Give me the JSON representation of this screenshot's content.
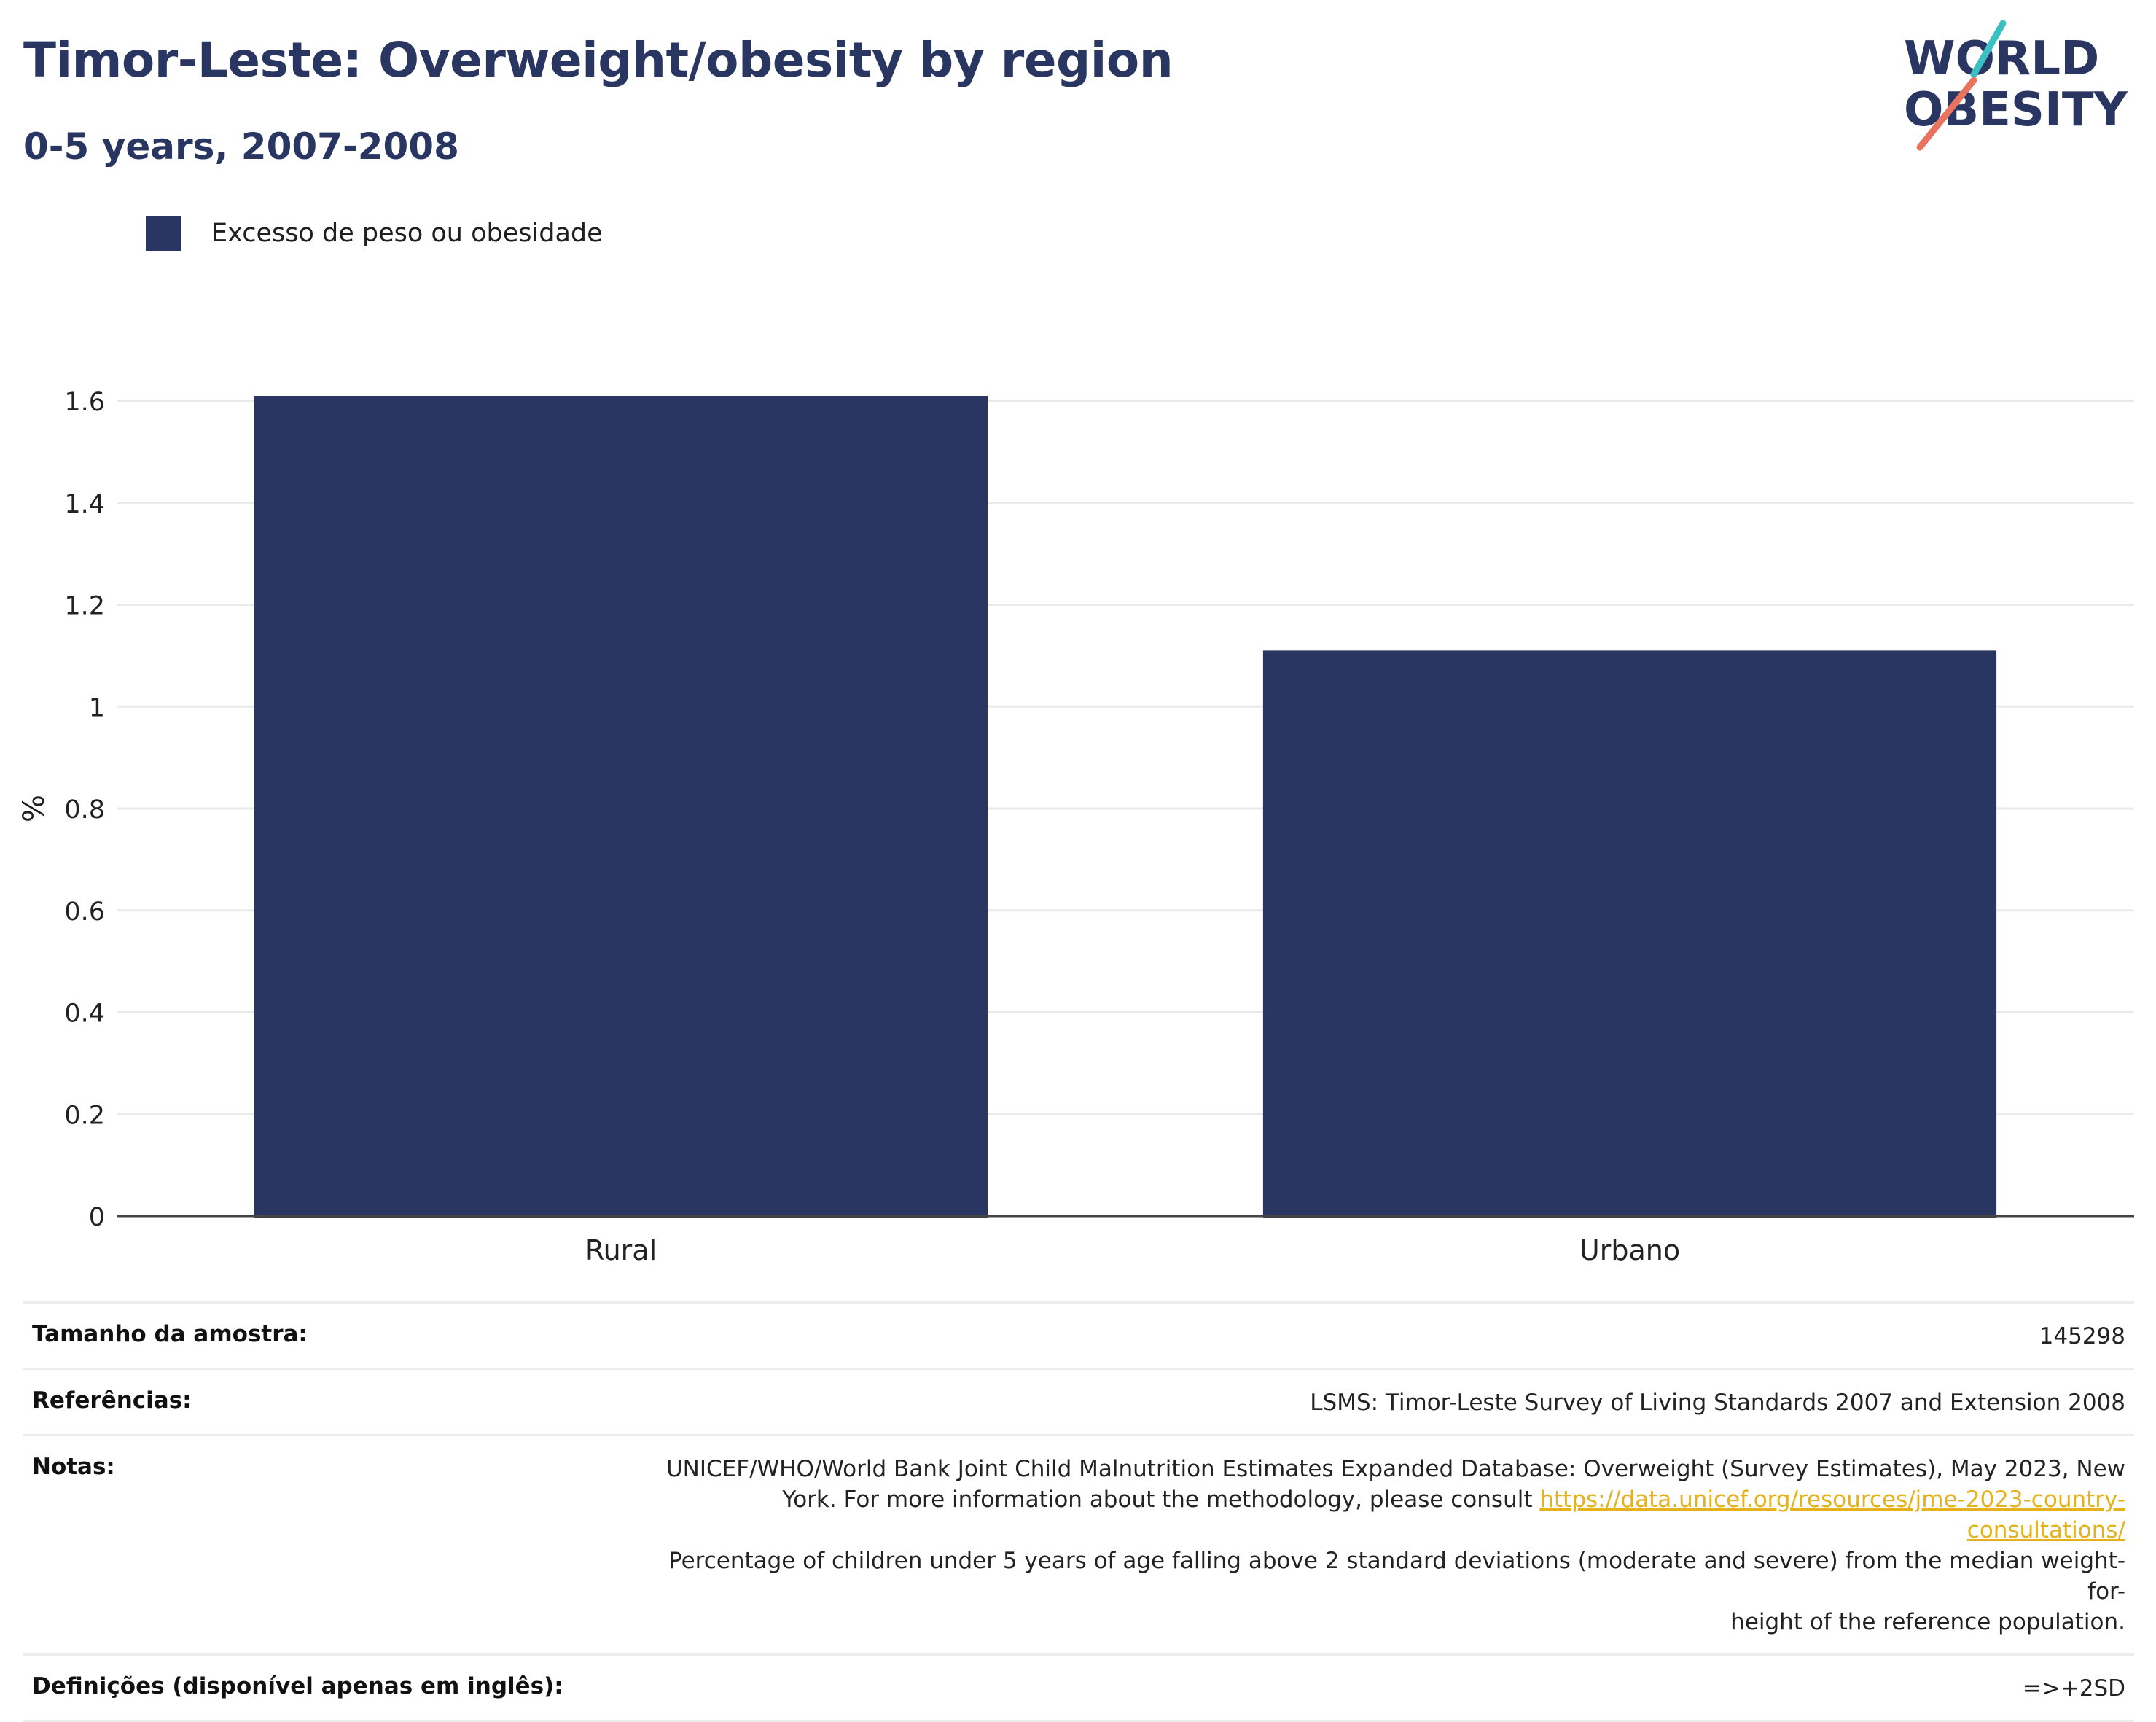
{
  "header": {
    "title": "Timor-Leste: Overweight/obesity by region",
    "subtitle": "0-5 years, 2007-2008"
  },
  "logo": {
    "line1": "WORLD",
    "line2": "OBESITY",
    "colors": {
      "text": "#2a3662",
      "slash_top": "#3bbfc1",
      "slash_bottom": "#e8735f"
    }
  },
  "legend": {
    "label": "Excesso de peso ou obesidade",
    "color": "#2a3662"
  },
  "chart_data": {
    "type": "bar",
    "categories": [
      "Rural",
      "Urbano"
    ],
    "series": [
      {
        "name": "Excesso de peso ou obesidade",
        "values": [
          1.61,
          1.11
        ],
        "color": "#2a3662"
      }
    ],
    "ylabel": "%",
    "xlabel": "",
    "ylim": [
      0,
      1.6
    ],
    "yticks": [
      0,
      0.2,
      0.4,
      0.6,
      0.8,
      1,
      1.2,
      1.4,
      1.6
    ],
    "ytick_labels": [
      "0",
      "0.2",
      "0.4",
      "0.6",
      "0.8",
      "1",
      "1.2",
      "1.4",
      "1.6"
    ],
    "grid": true,
    "legend_position": "top-left"
  },
  "info": {
    "sample_size_label": "Tamanho da amostra:",
    "sample_size_value": "145298",
    "references_label": "Referências:",
    "references_value": "LSMS: Timor-Leste Survey of Living Standards 2007 and Extension 2008",
    "notes_label": "Notas:",
    "notes_line1": "UNICEF/WHO/World Bank Joint Child Malnutrition Estimates Expanded Database: Overweight (Survey Estimates), May 2023, New",
    "notes_line2_prefix": "York. For more information about the methodology, please consult ",
    "notes_link": "https://data.unicef.org/resources/jme-2023-country-consultations/",
    "notes_line3": "Percentage of children under 5 years of age falling above 2 standard deviations (moderate and severe) from the median weight-for-",
    "notes_line4": "height of the reference population.",
    "definitions_label": "Definições (disponível apenas em inglês):",
    "definitions_value": "=>+2SD"
  }
}
